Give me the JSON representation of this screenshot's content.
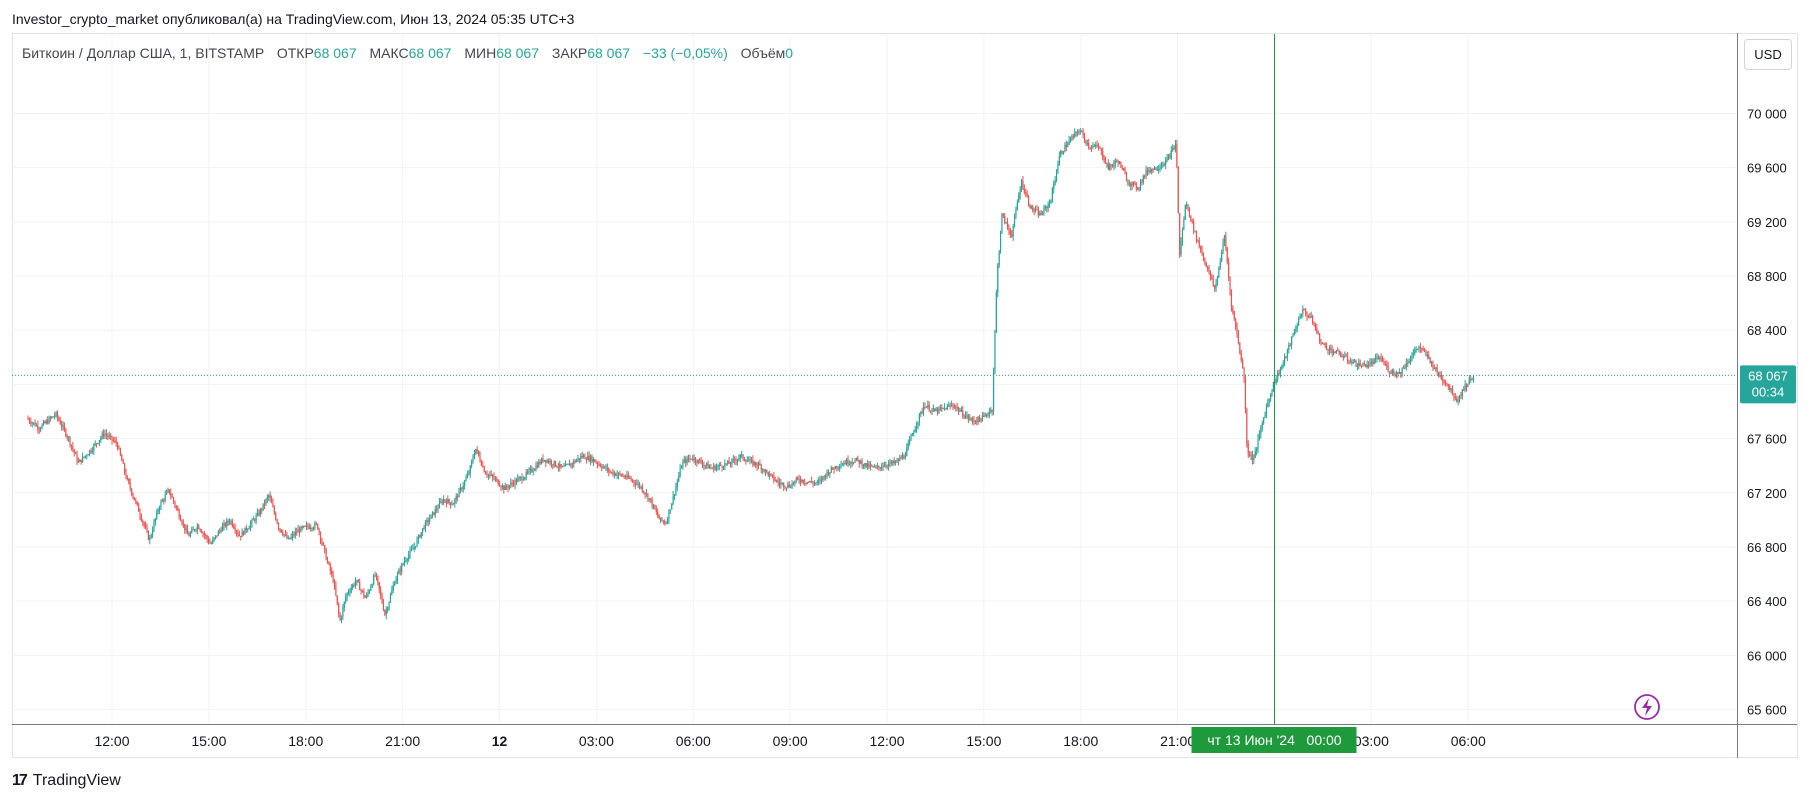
{
  "header": {
    "publisher_line": "Investor_crypto_market опубликовал(а) на TradingView.com, Июн 13, 2024 05:35 UTC+3"
  },
  "legend": {
    "symbol": "Биткоин / Доллар США, 1, BITSTAMP",
    "open_label": "ОТКР",
    "open_value": "68 067",
    "high_label": "МАКС",
    "high_value": "68 067",
    "low_label": "МИН",
    "low_value": "68 067",
    "close_label": "ЗАКР",
    "close_value": "68 067",
    "change": "−33 (−0,05%)",
    "volume_label": "Объём",
    "volume_value": "0"
  },
  "currency_button": "USD",
  "last_price": {
    "price": "68 067",
    "countdown": "00:34"
  },
  "crosshair_time_label": "чт 13 Июн '24   00:00",
  "footer": {
    "brand": "TradingView"
  },
  "colors": {
    "up": "#26a69a",
    "down": "#ef5350",
    "crosshair": "#1e9a3c",
    "price_line": "#26a69a",
    "lightning": "#9c27b0"
  },
  "chart_data": {
    "type": "candlestick",
    "symbol": "BTCUSD",
    "exchange": "BITSTAMP",
    "interval": "1",
    "y_ticks": [
      70000,
      69600,
      69200,
      68800,
      68400,
      68000,
      67600,
      67200,
      66800,
      66400,
      66000,
      65600
    ],
    "y_tick_labels": [
      "70 000",
      "69 600",
      "69 200",
      "68 800",
      "68 400",
      "68 000",
      "67 600",
      "67 200",
      "66 800",
      "66 400",
      "66 000",
      "65 600"
    ],
    "ylim": [
      65500,
      70250
    ],
    "x_ticks": [
      {
        "label": "12:00",
        "hour": 12
      },
      {
        "label": "15:00",
        "hour": 15
      },
      {
        "label": "18:00",
        "hour": 18
      },
      {
        "label": "21:00",
        "hour": 21
      },
      {
        "label": "12",
        "hour": 24,
        "bold": true
      },
      {
        "label": "03:00",
        "hour": 27
      },
      {
        "label": "06:00",
        "hour": 30
      },
      {
        "label": "09:00",
        "hour": 33
      },
      {
        "label": "12:00",
        "hour": 36
      },
      {
        "label": "15:00",
        "hour": 39
      },
      {
        "label": "18:00",
        "hour": 42
      },
      {
        "label": "21:00",
        "hour": 45
      },
      {
        "label": "03:00",
        "hour": 51
      },
      {
        "label": "06:00",
        "hour": 54
      }
    ],
    "x_range_hours": [
      9.4,
      56.1
    ],
    "crosshair_hour": 48,
    "last_price": 68067,
    "price_path": [
      [
        9.4,
        67750
      ],
      [
        9.8,
        67680
      ],
      [
        10.3,
        67780
      ],
      [
        10.7,
        67600
      ],
      [
        11.0,
        67420
      ],
      [
        11.4,
        67520
      ],
      [
        11.8,
        67640
      ],
      [
        12.2,
        67560
      ],
      [
        12.5,
        67300
      ],
      [
        12.9,
        67050
      ],
      [
        13.2,
        66850
      ],
      [
        13.5,
        67100
      ],
      [
        13.8,
        67220
      ],
      [
        14.1,
        67050
      ],
      [
        14.4,
        66880
      ],
      [
        14.7,
        66960
      ],
      [
        15.1,
        66820
      ],
      [
        15.4,
        66930
      ],
      [
        15.7,
        67000
      ],
      [
        16.0,
        66880
      ],
      [
        16.3,
        66960
      ],
      [
        16.6,
        67050
      ],
      [
        16.9,
        67180
      ],
      [
        17.2,
        66950
      ],
      [
        17.5,
        66850
      ],
      [
        17.8,
        66920
      ],
      [
        18.1,
        66950
      ],
      [
        18.4,
        66960
      ],
      [
        18.7,
        66700
      ],
      [
        18.9,
        66550
      ],
      [
        19.1,
        66250
      ],
      [
        19.3,
        66450
      ],
      [
        19.6,
        66550
      ],
      [
        19.9,
        66420
      ],
      [
        20.2,
        66600
      ],
      [
        20.5,
        66300
      ],
      [
        20.8,
        66550
      ],
      [
        21.1,
        66700
      ],
      [
        21.4,
        66800
      ],
      [
        21.7,
        66950
      ],
      [
        22.0,
        67050
      ],
      [
        22.3,
        67150
      ],
      [
        22.6,
        67120
      ],
      [
        22.9,
        67250
      ],
      [
        23.1,
        67350
      ],
      [
        23.3,
        67530
      ],
      [
        23.6,
        67350
      ],
      [
        23.9,
        67300
      ],
      [
        24.2,
        67230
      ],
      [
        24.5,
        67280
      ],
      [
        24.8,
        67320
      ],
      [
        25.1,
        67380
      ],
      [
        25.4,
        67450
      ],
      [
        25.7,
        67420
      ],
      [
        26.0,
        67380
      ],
      [
        26.3,
        67420
      ],
      [
        26.6,
        67470
      ],
      [
        26.9,
        67450
      ],
      [
        27.2,
        67400
      ],
      [
        27.5,
        67350
      ],
      [
        27.8,
        67330
      ],
      [
        28.1,
        67300
      ],
      [
        28.4,
        67250
      ],
      [
        28.7,
        67150
      ],
      [
        29.0,
        67000
      ],
      [
        29.2,
        66980
      ],
      [
        29.4,
        67150
      ],
      [
        29.7,
        67420
      ],
      [
        30.0,
        67460
      ],
      [
        30.3,
        67420
      ],
      [
        30.6,
        67380
      ],
      [
        30.9,
        67400
      ],
      [
        31.2,
        67420
      ],
      [
        31.5,
        67470
      ],
      [
        31.8,
        67430
      ],
      [
        32.1,
        67400
      ],
      [
        32.4,
        67330
      ],
      [
        32.7,
        67270
      ],
      [
        33.0,
        67250
      ],
      [
        33.3,
        67300
      ],
      [
        33.6,
        67280
      ],
      [
        33.9,
        67270
      ],
      [
        34.2,
        67350
      ],
      [
        34.5,
        67400
      ],
      [
        34.8,
        67430
      ],
      [
        35.1,
        67440
      ],
      [
        35.4,
        67400
      ],
      [
        35.7,
        67380
      ],
      [
        36.0,
        67410
      ],
      [
        36.3,
        67420
      ],
      [
        36.6,
        67480
      ],
      [
        36.9,
        67680
      ],
      [
        37.2,
        67850
      ],
      [
        37.5,
        67800
      ],
      [
        37.8,
        67820
      ],
      [
        38.1,
        67850
      ],
      [
        38.4,
        67780
      ],
      [
        38.7,
        67730
      ],
      [
        39.0,
        67750
      ],
      [
        39.3,
        67820
      ],
      [
        39.45,
        68800
      ],
      [
        39.6,
        69250
      ],
      [
        39.9,
        69100
      ],
      [
        40.2,
        69500
      ],
      [
        40.5,
        69300
      ],
      [
        40.8,
        69250
      ],
      [
        41.1,
        69350
      ],
      [
        41.4,
        69700
      ],
      [
        41.7,
        69800
      ],
      [
        42.0,
        69880
      ],
      [
        42.3,
        69760
      ],
      [
        42.6,
        69750
      ],
      [
        42.9,
        69600
      ],
      [
        43.2,
        69650
      ],
      [
        43.5,
        69500
      ],
      [
        43.8,
        69450
      ],
      [
        44.1,
        69580
      ],
      [
        44.4,
        69600
      ],
      [
        44.7,
        69650
      ],
      [
        45.0,
        69780
      ],
      [
        45.1,
        68950
      ],
      [
        45.3,
        69350
      ],
      [
        45.6,
        69100
      ],
      [
        45.9,
        68900
      ],
      [
        46.2,
        68700
      ],
      [
        46.5,
        69100
      ],
      [
        46.7,
        68600
      ],
      [
        46.9,
        68350
      ],
      [
        47.1,
        68050
      ],
      [
        47.2,
        67500
      ],
      [
        47.4,
        67450
      ],
      [
        47.7,
        67750
      ],
      [
        48.0,
        68000
      ],
      [
        48.3,
        68150
      ],
      [
        48.6,
        68350
      ],
      [
        48.9,
        68550
      ],
      [
        49.2,
        68480
      ],
      [
        49.5,
        68300
      ],
      [
        49.8,
        68250
      ],
      [
        50.1,
        68220
      ],
      [
        50.4,
        68170
      ],
      [
        50.7,
        68140
      ],
      [
        51.0,
        68150
      ],
      [
        51.3,
        68200
      ],
      [
        51.6,
        68100
      ],
      [
        51.9,
        68080
      ],
      [
        52.2,
        68180
      ],
      [
        52.5,
        68280
      ],
      [
        52.8,
        68200
      ],
      [
        53.1,
        68080
      ],
      [
        53.4,
        68000
      ],
      [
        53.7,
        67880
      ],
      [
        53.9,
        67970
      ],
      [
        54.2,
        68067
      ]
    ]
  }
}
